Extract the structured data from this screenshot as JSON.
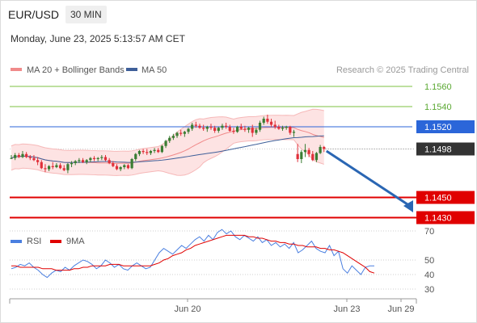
{
  "header": {
    "symbol": "EUR/USD",
    "timeframe": "30 MIN",
    "timestamp": "Monday, June 23, 2025 5:13:57 AM CET"
  },
  "chart_data": {
    "type": "candlestick",
    "legend": {
      "ma20_bb": "MA 20 + Bollinger Bands",
      "ma50": "MA 50",
      "rsi": "RSI",
      "ma9": "9MA"
    },
    "credit": "Research © 2025 Trading Central",
    "price_axis": {
      "ticks": [
        1.156,
        1.154,
        1.152,
        1.1498,
        1.145,
        1.143
      ]
    },
    "rsi_axis": {
      "ticks": [
        70,
        50,
        40,
        30
      ]
    },
    "x_tick_labels": [
      "Jun 20",
      "Jun 23",
      "Jun 29"
    ],
    "levels": [
      {
        "value": 1.156,
        "label": "1.1560",
        "color": "#7cc242",
        "kind": "target"
      },
      {
        "value": 1.154,
        "label": "1.1540",
        "color": "#7cc242",
        "kind": "target"
      },
      {
        "value": 1.152,
        "label": "1.1520",
        "color": "#2b66d9",
        "kind": "pivot"
      },
      {
        "value": 1.145,
        "label": "1.1450",
        "color": "#e00000",
        "kind": "support"
      },
      {
        "value": 1.143,
        "label": "1.1430",
        "color": "#e00000",
        "kind": "support"
      }
    ],
    "last_price": {
      "value": 1.1498,
      "label": "1.1498"
    },
    "forecast_arrow": {
      "from": 1.1496,
      "to": 1.1436
    },
    "colors": {
      "up": "#3a7d33",
      "down": "#e0303a",
      "ma20": "#f08a8a",
      "bb_fill": "#fde3e3",
      "ma50": "#3e5f99",
      "rsi": "#4a7fe0",
      "rsi9": "#e00000",
      "price_box": "#333333"
    },
    "candles": [
      [
        1.1489,
        1.1492,
        1.1488,
        1.1489
      ],
      [
        1.1489,
        1.1494,
        1.1487,
        1.1492
      ],
      [
        1.1492,
        1.1494,
        1.1489,
        1.149
      ],
      [
        1.149,
        1.1496,
        1.1489,
        1.1493
      ],
      [
        1.1493,
        1.1495,
        1.1489,
        1.149
      ],
      [
        1.149,
        1.1492,
        1.1487,
        1.1489
      ],
      [
        1.1489,
        1.1492,
        1.1486,
        1.1487
      ],
      [
        1.1487,
        1.149,
        1.1482,
        1.1485
      ],
      [
        1.1485,
        1.1487,
        1.1478,
        1.1479
      ],
      [
        1.1479,
        1.1483,
        1.1475,
        1.1478
      ],
      [
        1.1478,
        1.1482,
        1.1476,
        1.1481
      ],
      [
        1.1481,
        1.1485,
        1.1478,
        1.148
      ],
      [
        1.148,
        1.1484,
        1.1479,
        1.1482
      ],
      [
        1.1482,
        1.1484,
        1.1478,
        1.1479
      ],
      [
        1.1479,
        1.1482,
        1.1476,
        1.1477
      ],
      [
        1.1477,
        1.1484,
        1.1474,
        1.1483
      ],
      [
        1.1483,
        1.1486,
        1.148,
        1.1484
      ],
      [
        1.1484,
        1.1487,
        1.1482,
        1.1486
      ],
      [
        1.1486,
        1.1489,
        1.1484,
        1.1487
      ],
      [
        1.1487,
        1.1489,
        1.1484,
        1.1485
      ],
      [
        1.1485,
        1.1488,
        1.1483,
        1.1487
      ],
      [
        1.1487,
        1.149,
        1.1485,
        1.1489
      ],
      [
        1.1489,
        1.1491,
        1.1486,
        1.1488
      ],
      [
        1.1488,
        1.149,
        1.1486,
        1.1489
      ],
      [
        1.1489,
        1.1492,
        1.1487,
        1.149
      ],
      [
        1.149,
        1.1492,
        1.1486,
        1.1487
      ],
      [
        1.1487,
        1.1489,
        1.1483,
        1.1484
      ],
      [
        1.1484,
        1.1486,
        1.148,
        1.1481
      ],
      [
        1.1481,
        1.1483,
        1.1477,
        1.1478
      ],
      [
        1.1478,
        1.1481,
        1.1476,
        1.148
      ],
      [
        1.148,
        1.1483,
        1.1478,
        1.1482
      ],
      [
        1.1482,
        1.1483,
        1.1478,
        1.1479
      ],
      [
        1.1479,
        1.1489,
        1.1478,
        1.1488
      ],
      [
        1.1488,
        1.1494,
        1.1486,
        1.1493
      ],
      [
        1.1493,
        1.1497,
        1.1491,
        1.1496
      ],
      [
        1.1496,
        1.1498,
        1.1493,
        1.1495
      ],
      [
        1.1495,
        1.1498,
        1.1492,
        1.1494
      ],
      [
        1.1494,
        1.1497,
        1.1492,
        1.1496
      ],
      [
        1.1496,
        1.1499,
        1.1494,
        1.1497
      ],
      [
        1.1497,
        1.1499,
        1.1494,
        1.1495
      ],
      [
        1.1495,
        1.1502,
        1.1494,
        1.1501
      ],
      [
        1.1501,
        1.1507,
        1.1499,
        1.1506
      ],
      [
        1.1506,
        1.1511,
        1.1504,
        1.1509
      ],
      [
        1.1509,
        1.1513,
        1.1507,
        1.1511
      ],
      [
        1.1511,
        1.1515,
        1.1509,
        1.1514
      ],
      [
        1.1514,
        1.1517,
        1.1511,
        1.1513
      ],
      [
        1.1513,
        1.1516,
        1.151,
        1.1515
      ],
      [
        1.1515,
        1.1519,
        1.1513,
        1.1518
      ],
      [
        1.1518,
        1.1524,
        1.1516,
        1.1522
      ],
      [
        1.1522,
        1.1525,
        1.1519,
        1.1521
      ],
      [
        1.1521,
        1.1523,
        1.1518,
        1.1519
      ],
      [
        1.1519,
        1.1522,
        1.1516,
        1.1518
      ],
      [
        1.1518,
        1.1521,
        1.1515,
        1.152
      ],
      [
        1.152,
        1.1523,
        1.1517,
        1.1519
      ],
      [
        1.1519,
        1.1521,
        1.1514,
        1.1516
      ],
      [
        1.1516,
        1.152,
        1.1514,
        1.1519
      ],
      [
        1.1519,
        1.1523,
        1.1517,
        1.1521
      ],
      [
        1.1521,
        1.1524,
        1.1518,
        1.152
      ],
      [
        1.152,
        1.1522,
        1.1515,
        1.1516
      ],
      [
        1.1516,
        1.1519,
        1.1513,
        1.1515
      ],
      [
        1.1515,
        1.1521,
        1.1514,
        1.152
      ],
      [
        1.152,
        1.1523,
        1.1517,
        1.1518
      ],
      [
        1.1518,
        1.1521,
        1.1515,
        1.1517
      ],
      [
        1.1517,
        1.152,
        1.1514,
        1.1519
      ],
      [
        1.1519,
        1.1522,
        1.151,
        1.1514
      ],
      [
        1.1514,
        1.1519,
        1.1512,
        1.1517
      ],
      [
        1.1517,
        1.1526,
        1.1515,
        1.1524
      ],
      [
        1.1524,
        1.153,
        1.1522,
        1.1528
      ],
      [
        1.1528,
        1.1532,
        1.1523,
        1.1525
      ],
      [
        1.1525,
        1.1528,
        1.152,
        1.1522
      ],
      [
        1.1522,
        1.1526,
        1.1518,
        1.152
      ],
      [
        1.152,
        1.1522,
        1.1517,
        1.1518
      ],
      [
        1.1518,
        1.1521,
        1.1516,
        1.1519
      ],
      [
        1.1519,
        1.1521,
        1.1517,
        1.152
      ],
      [
        1.152,
        1.1521,
        1.1512,
        1.1514
      ],
      [
        1.1514,
        1.1517,
        1.151,
        1.1515
      ],
      [
        1.1493,
        1.1503,
        1.1485,
        1.1488
      ],
      [
        1.1488,
        1.1497,
        1.1484,
        1.1495
      ],
      [
        1.1495,
        1.1503,
        1.149,
        1.1497
      ],
      [
        1.1497,
        1.1499,
        1.149,
        1.1493
      ],
      [
        1.1493,
        1.1496,
        1.1486,
        1.1487
      ],
      [
        1.1487,
        1.1495,
        1.1485,
        1.1494
      ],
      [
        1.1494,
        1.1502,
        1.1493,
        1.15
      ],
      [
        1.15,
        1.1501,
        1.1495,
        1.1498
      ]
    ],
    "rsi_series": [
      44,
      45,
      47,
      46,
      48,
      45,
      43,
      40,
      38,
      41,
      43,
      42,
      45,
      43,
      46,
      48,
      50,
      49,
      47,
      44,
      46,
      50,
      48,
      45,
      47,
      44,
      43,
      46,
      48,
      46,
      44,
      45,
      50,
      55,
      58,
      56,
      54,
      57,
      60,
      58,
      61,
      64,
      66,
      63,
      67,
      64,
      69,
      71,
      68,
      70,
      66,
      64,
      67,
      65,
      63,
      66,
      62,
      64,
      60,
      62,
      59,
      61,
      58,
      62,
      55,
      57,
      60,
      63,
      58,
      56,
      55,
      60,
      53,
      56,
      44,
      41,
      46,
      43,
      40,
      45,
      46,
      46
    ],
    "rsi_ma_series": [
      46,
      46,
      45,
      45,
      45,
      45,
      45,
      44,
      44,
      44,
      43,
      43,
      43,
      43,
      44,
      44,
      45,
      45,
      46,
      46,
      46,
      46,
      47,
      47,
      47,
      46,
      46,
      46,
      46,
      46,
      46,
      46,
      47,
      48,
      50,
      51,
      53,
      54,
      55,
      57,
      58,
      60,
      61,
      62,
      63,
      64,
      65,
      66,
      67,
      67,
      67,
      67,
      67,
      66,
      66,
      65,
      65,
      64,
      63,
      63,
      62,
      62,
      61,
      61,
      60,
      60,
      59,
      59,
      59,
      58,
      58,
      57,
      57,
      56,
      55,
      53,
      51,
      49,
      47,
      45,
      42,
      41
    ]
  }
}
